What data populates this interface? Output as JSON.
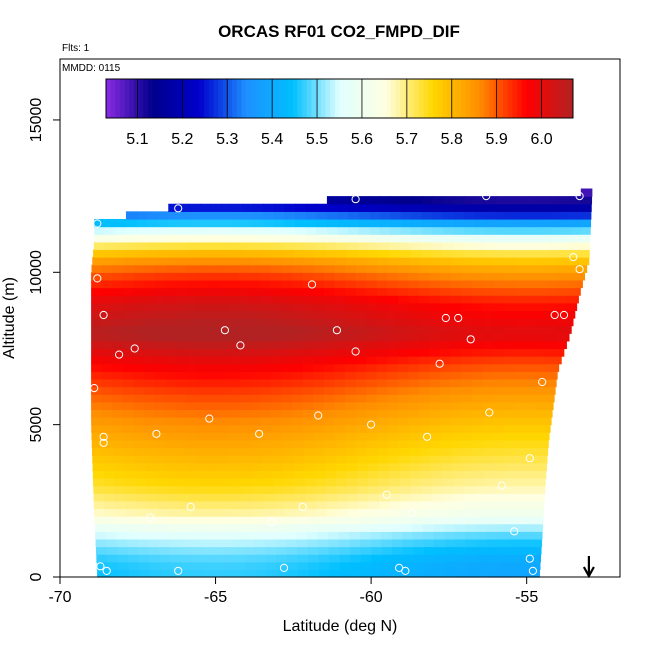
{
  "chart_data": {
    "type": "heatmap",
    "title": "ORCAS RF01 CO2_FMPD_DIF",
    "annotations": [
      "Flts: 1",
      "MMDD: 0115"
    ],
    "xlabel": "Latitude (deg N)",
    "ylabel": "Altitude (m)",
    "xlim": [
      -70,
      -52
    ],
    "ylim": [
      0,
      17000
    ],
    "x_ticks": [
      -70,
      -65,
      -60,
      -55
    ],
    "x_tick_labels": [
      "-70",
      "-65",
      "-60",
      "-55"
    ],
    "y_ticks": [
      0,
      5000,
      10000,
      15000
    ],
    "y_tick_labels": [
      "0",
      "5000",
      "10000",
      "15000"
    ],
    "grid": false,
    "colorbar": {
      "placement": "top-inset",
      "range": [
        5.03,
        6.07
      ],
      "ticks": [
        5.1,
        5.2,
        5.3,
        5.4,
        5.5,
        5.6,
        5.7,
        5.8,
        5.9,
        6.0
      ],
      "tick_labels": [
        "5.1",
        "5.2",
        "5.3",
        "5.4",
        "5.5",
        "5.6",
        "5.7",
        "5.8",
        "5.9",
        "6.0"
      ],
      "colors": [
        "#8a2be2",
        "#00008b",
        "#0000cd",
        "#1e90ff",
        "#00bfff",
        "#e0ffff",
        "#ffffe0",
        "#ffd700",
        "#ff8c00",
        "#ff0000",
        "#b22222"
      ]
    },
    "field_profile": {
      "altitudes_m": [
        0,
        500,
        1000,
        1500,
        2000,
        3000,
        4000,
        5000,
        6000,
        7000,
        8000,
        9000,
        10000,
        10500,
        11000,
        11500,
        12000,
        12500
      ],
      "values": [
        5.43,
        5.44,
        5.48,
        5.54,
        5.64,
        5.72,
        5.77,
        5.82,
        5.88,
        5.95,
        6.05,
        5.99,
        5.88,
        5.8,
        5.66,
        5.48,
        5.25,
        5.12
      ]
    },
    "data_extent": {
      "lat_min": -68.8,
      "lat_max": -52.9,
      "alt_min": 0,
      "alt_max": 12800
    },
    "sample_points": [
      {
        "x": -68.8,
        "y": 11600
      },
      {
        "x": -68.8,
        "y": 9800
      },
      {
        "x": -68.6,
        "y": 8600
      },
      {
        "x": -68.1,
        "y": 7300
      },
      {
        "x": -67.6,
        "y": 7500
      },
      {
        "x": -68.9,
        "y": 6200
      },
      {
        "x": -68.6,
        "y": 4600
      },
      {
        "x": -68.6,
        "y": 4400
      },
      {
        "x": -66.9,
        "y": 4700
      },
      {
        "x": -67.1,
        "y": 1950
      },
      {
        "x": -65.8,
        "y": 2300
      },
      {
        "x": -66.2,
        "y": 12100
      },
      {
        "x": -64.7,
        "y": 8100
      },
      {
        "x": -64.2,
        "y": 7600
      },
      {
        "x": -65.2,
        "y": 5200
      },
      {
        "x": -63.6,
        "y": 4700
      },
      {
        "x": -63.2,
        "y": 1800
      },
      {
        "x": -61.9,
        "y": 9600
      },
      {
        "x": -61.1,
        "y": 8100
      },
      {
        "x": -60.5,
        "y": 7400
      },
      {
        "x": -61.7,
        "y": 5300
      },
      {
        "x": -60.0,
        "y": 5000
      },
      {
        "x": -62.2,
        "y": 2300
      },
      {
        "x": -60.5,
        "y": 12400
      },
      {
        "x": -59.5,
        "y": 2700
      },
      {
        "x": -58.7,
        "y": 2100
      },
      {
        "x": -58.2,
        "y": 4600
      },
      {
        "x": -57.6,
        "y": 8500
      },
      {
        "x": -57.2,
        "y": 8500
      },
      {
        "x": -56.8,
        "y": 7800
      },
      {
        "x": -56.3,
        "y": 12500
      },
      {
        "x": -56.2,
        "y": 5400
      },
      {
        "x": -57.8,
        "y": 7000
      },
      {
        "x": -55.8,
        "y": 3000
      },
      {
        "x": -54.9,
        "y": 3900
      },
      {
        "x": -54.5,
        "y": 6400
      },
      {
        "x": -54.1,
        "y": 8600
      },
      {
        "x": -53.8,
        "y": 8600
      },
      {
        "x": -53.5,
        "y": 10500
      },
      {
        "x": -53.3,
        "y": 10100
      },
      {
        "x": -53.3,
        "y": 12500
      },
      {
        "x": -55.4,
        "y": 1500
      },
      {
        "x": -54.9,
        "y": 600
      },
      {
        "x": -54.8,
        "y": 200
      },
      {
        "x": -66.2,
        "y": 200
      },
      {
        "x": -68.5,
        "y": 200
      },
      {
        "x": -68.7,
        "y": 350
      },
      {
        "x": -62.8,
        "y": 300
      },
      {
        "x": -59.1,
        "y": 300
      },
      {
        "x": -58.9,
        "y": 200
      }
    ],
    "marker": {
      "symbol": "down-arrow",
      "x": -53.0
    }
  }
}
